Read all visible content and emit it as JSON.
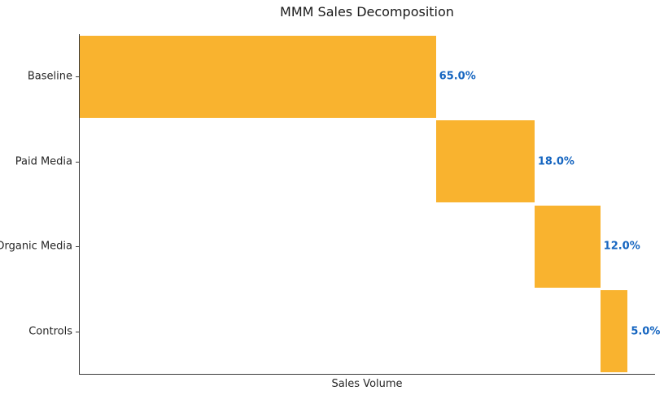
{
  "chart_data": {
    "type": "bar",
    "subtype": "horizontal-waterfall",
    "title": "MMM Sales Decomposition",
    "xlabel": "Sales Volume",
    "ylabel": "",
    "categories": [
      "Baseline",
      "Paid Media",
      "Organic Media",
      "Controls"
    ],
    "values": [
      65.0,
      18.0,
      12.0,
      5.0
    ],
    "starts": [
      0.0,
      65.0,
      83.0,
      95.0
    ],
    "value_labels": [
      "65.0%",
      "18.0%",
      "12.0%",
      "5.0%"
    ],
    "xlim": [
      0,
      105
    ],
    "grid": false,
    "legend": false,
    "bar_color": "#F9B32F",
    "value_label_color": "#1565C0",
    "spine_color": "#3a3a3a"
  }
}
